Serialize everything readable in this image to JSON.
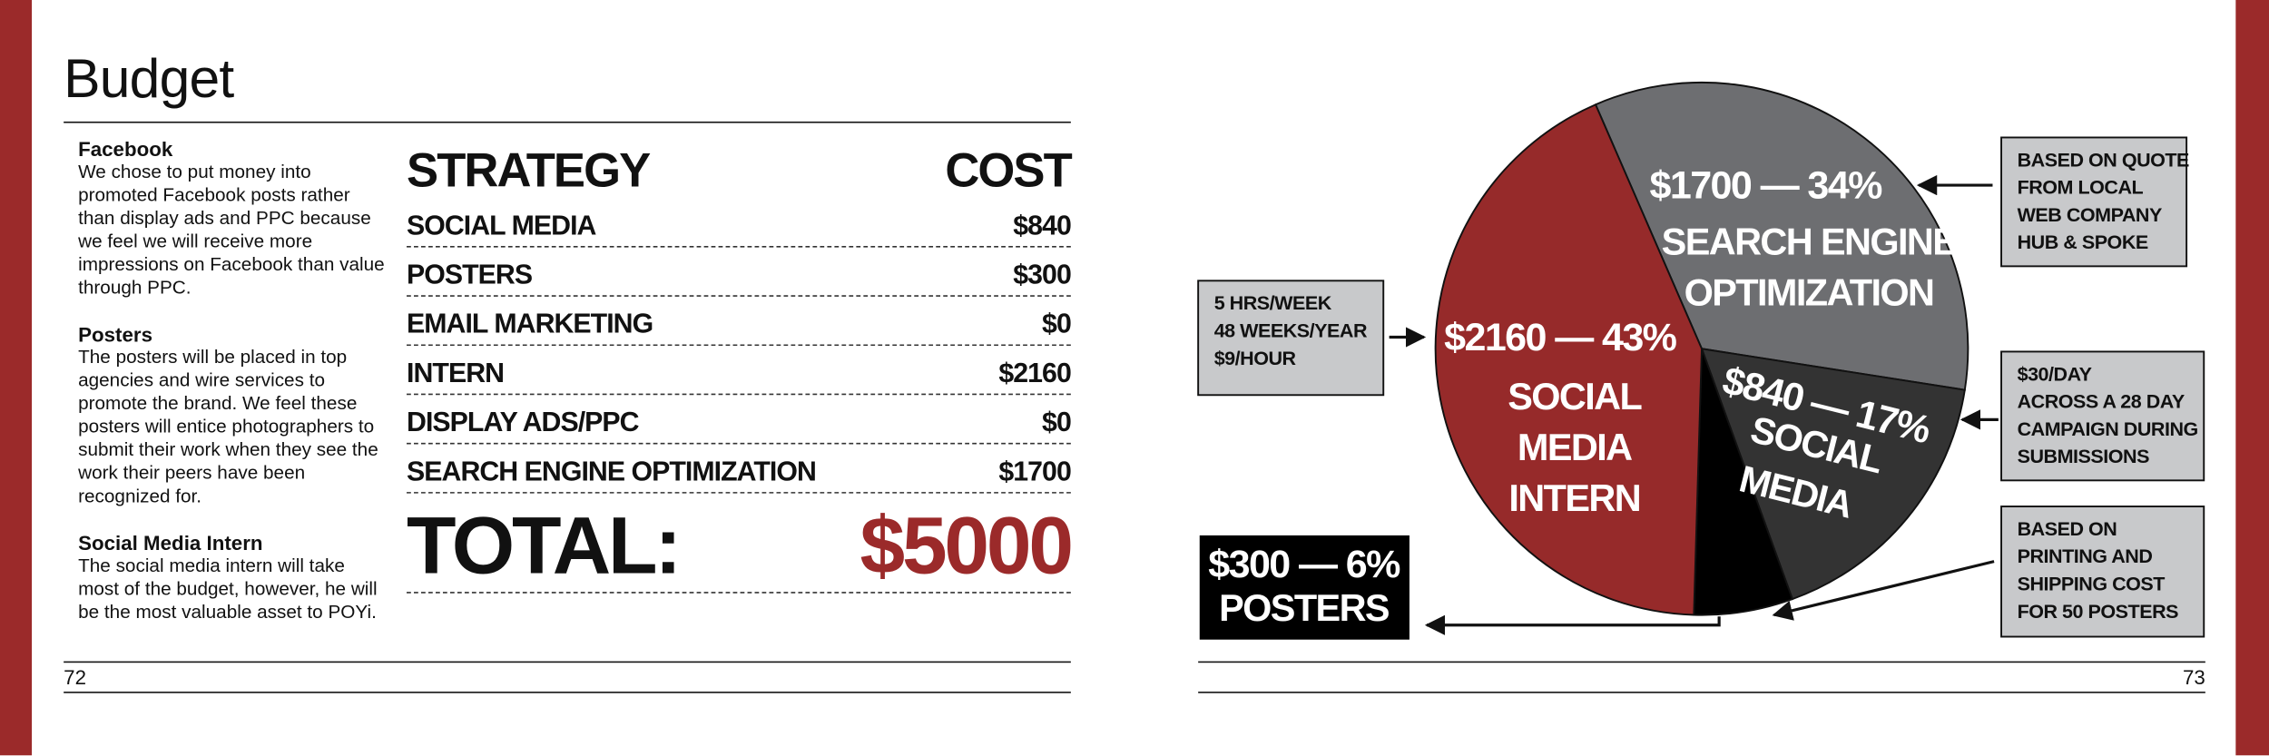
{
  "title": "Budget",
  "sections": [
    {
      "heading": "Facebook",
      "text": "We chose to put money into promoted Facebook posts rather than display ads and PPC because we feel we will receive more impressions on Facebook than value through PPC."
    },
    {
      "heading": "Posters",
      "text": "The posters will be placed in top agencies and wire services to promote the brand. We feel these posters will entice photographers to submit their work when they see the work their peers have been recognized for."
    },
    {
      "heading": "Social Media Intern",
      "text": "The social media intern will take most of the budget, however, he will be the most valuable asset to POYi."
    }
  ],
  "table": {
    "header": [
      "STRATEGY",
      "COST"
    ],
    "rows": [
      [
        "SOCIAL MEDIA",
        "$840"
      ],
      [
        "POSTERS",
        "$300"
      ],
      [
        "EMAIL MARKETING",
        "$0"
      ],
      [
        "INTERN",
        "$2160"
      ],
      [
        "DISPLAY ADS/PPC",
        "$0"
      ],
      [
        "SEARCH ENGINE OPTIMIZATION",
        "$1700"
      ]
    ],
    "total": [
      "TOTAL:",
      "$5000"
    ]
  },
  "page_numbers": [
    "72",
    "73"
  ],
  "chart_data": {
    "type": "pie",
    "categories": [
      [
        "SEARCH ENGINE",
        "OPTIMIZATION"
      ],
      [
        "SOCIAL",
        "MEDIA"
      ],
      [
        "POSTERS"
      ],
      [
        "SOCIAL",
        "MEDIA",
        "INTERN"
      ]
    ],
    "values": [
      34,
      17,
      6,
      43
    ],
    "value_labels": [
      "$1700 — 34%",
      "$840 — 17%",
      "$300 — 6%",
      "$2160 — 43%"
    ],
    "colors": [
      "#6d6e71",
      "#333333",
      "#000000",
      "#962a2a"
    ],
    "notes": [
      [
        "BASED ON QUOTE",
        "FROM LOCAL",
        "WEB COMPANY",
        "HUB & SPOKE"
      ],
      [
        "$30/DAY",
        "ACROSS A 28 DAY",
        "CAMPAIGN DURING",
        "SUBMISSIONS"
      ],
      [
        "BASED ON",
        "PRINTING AND",
        "SHIPPING COST",
        "FOR 50 POSTERS"
      ],
      [
        "5 HRS/WEEK",
        "48 WEEKS/YEAR",
        "$9/HOUR"
      ]
    ]
  }
}
